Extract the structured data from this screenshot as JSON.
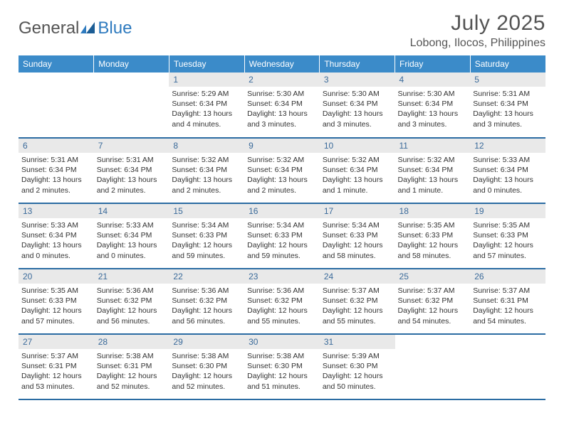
{
  "logo": {
    "text1": "General",
    "text2": "Blue"
  },
  "title": "July 2025",
  "location": "Lobong, Ilocos, Philippines",
  "colors": {
    "header_bg": "#3b8bc9",
    "header_text": "#ffffff",
    "row_border": "#2b6ca3",
    "daynum_bg": "#e9e9e9",
    "daynum_text": "#3a6a9a",
    "body_text": "#333333",
    "title_text": "#545454",
    "logo_gray": "#555555",
    "logo_blue": "#2f7bbf"
  },
  "weekdays": [
    "Sunday",
    "Monday",
    "Tuesday",
    "Wednesday",
    "Thursday",
    "Friday",
    "Saturday"
  ],
  "weeks": [
    [
      {
        "n": "",
        "sr": "",
        "ss": "",
        "dl": ""
      },
      {
        "n": "",
        "sr": "",
        "ss": "",
        "dl": ""
      },
      {
        "n": "1",
        "sr": "Sunrise: 5:29 AM",
        "ss": "Sunset: 6:34 PM",
        "dl": "Daylight: 13 hours and 4 minutes."
      },
      {
        "n": "2",
        "sr": "Sunrise: 5:30 AM",
        "ss": "Sunset: 6:34 PM",
        "dl": "Daylight: 13 hours and 3 minutes."
      },
      {
        "n": "3",
        "sr": "Sunrise: 5:30 AM",
        "ss": "Sunset: 6:34 PM",
        "dl": "Daylight: 13 hours and 3 minutes."
      },
      {
        "n": "4",
        "sr": "Sunrise: 5:30 AM",
        "ss": "Sunset: 6:34 PM",
        "dl": "Daylight: 13 hours and 3 minutes."
      },
      {
        "n": "5",
        "sr": "Sunrise: 5:31 AM",
        "ss": "Sunset: 6:34 PM",
        "dl": "Daylight: 13 hours and 3 minutes."
      }
    ],
    [
      {
        "n": "6",
        "sr": "Sunrise: 5:31 AM",
        "ss": "Sunset: 6:34 PM",
        "dl": "Daylight: 13 hours and 2 minutes."
      },
      {
        "n": "7",
        "sr": "Sunrise: 5:31 AM",
        "ss": "Sunset: 6:34 PM",
        "dl": "Daylight: 13 hours and 2 minutes."
      },
      {
        "n": "8",
        "sr": "Sunrise: 5:32 AM",
        "ss": "Sunset: 6:34 PM",
        "dl": "Daylight: 13 hours and 2 minutes."
      },
      {
        "n": "9",
        "sr": "Sunrise: 5:32 AM",
        "ss": "Sunset: 6:34 PM",
        "dl": "Daylight: 13 hours and 2 minutes."
      },
      {
        "n": "10",
        "sr": "Sunrise: 5:32 AM",
        "ss": "Sunset: 6:34 PM",
        "dl": "Daylight: 13 hours and 1 minute."
      },
      {
        "n": "11",
        "sr": "Sunrise: 5:32 AM",
        "ss": "Sunset: 6:34 PM",
        "dl": "Daylight: 13 hours and 1 minute."
      },
      {
        "n": "12",
        "sr": "Sunrise: 5:33 AM",
        "ss": "Sunset: 6:34 PM",
        "dl": "Daylight: 13 hours and 0 minutes."
      }
    ],
    [
      {
        "n": "13",
        "sr": "Sunrise: 5:33 AM",
        "ss": "Sunset: 6:34 PM",
        "dl": "Daylight: 13 hours and 0 minutes."
      },
      {
        "n": "14",
        "sr": "Sunrise: 5:33 AM",
        "ss": "Sunset: 6:34 PM",
        "dl": "Daylight: 13 hours and 0 minutes."
      },
      {
        "n": "15",
        "sr": "Sunrise: 5:34 AM",
        "ss": "Sunset: 6:33 PM",
        "dl": "Daylight: 12 hours and 59 minutes."
      },
      {
        "n": "16",
        "sr": "Sunrise: 5:34 AM",
        "ss": "Sunset: 6:33 PM",
        "dl": "Daylight: 12 hours and 59 minutes."
      },
      {
        "n": "17",
        "sr": "Sunrise: 5:34 AM",
        "ss": "Sunset: 6:33 PM",
        "dl": "Daylight: 12 hours and 58 minutes."
      },
      {
        "n": "18",
        "sr": "Sunrise: 5:35 AM",
        "ss": "Sunset: 6:33 PM",
        "dl": "Daylight: 12 hours and 58 minutes."
      },
      {
        "n": "19",
        "sr": "Sunrise: 5:35 AM",
        "ss": "Sunset: 6:33 PM",
        "dl": "Daylight: 12 hours and 57 minutes."
      }
    ],
    [
      {
        "n": "20",
        "sr": "Sunrise: 5:35 AM",
        "ss": "Sunset: 6:33 PM",
        "dl": "Daylight: 12 hours and 57 minutes."
      },
      {
        "n": "21",
        "sr": "Sunrise: 5:36 AM",
        "ss": "Sunset: 6:32 PM",
        "dl": "Daylight: 12 hours and 56 minutes."
      },
      {
        "n": "22",
        "sr": "Sunrise: 5:36 AM",
        "ss": "Sunset: 6:32 PM",
        "dl": "Daylight: 12 hours and 56 minutes."
      },
      {
        "n": "23",
        "sr": "Sunrise: 5:36 AM",
        "ss": "Sunset: 6:32 PM",
        "dl": "Daylight: 12 hours and 55 minutes."
      },
      {
        "n": "24",
        "sr": "Sunrise: 5:37 AM",
        "ss": "Sunset: 6:32 PM",
        "dl": "Daylight: 12 hours and 55 minutes."
      },
      {
        "n": "25",
        "sr": "Sunrise: 5:37 AM",
        "ss": "Sunset: 6:32 PM",
        "dl": "Daylight: 12 hours and 54 minutes."
      },
      {
        "n": "26",
        "sr": "Sunrise: 5:37 AM",
        "ss": "Sunset: 6:31 PM",
        "dl": "Daylight: 12 hours and 54 minutes."
      }
    ],
    [
      {
        "n": "27",
        "sr": "Sunrise: 5:37 AM",
        "ss": "Sunset: 6:31 PM",
        "dl": "Daylight: 12 hours and 53 minutes."
      },
      {
        "n": "28",
        "sr": "Sunrise: 5:38 AM",
        "ss": "Sunset: 6:31 PM",
        "dl": "Daylight: 12 hours and 52 minutes."
      },
      {
        "n": "29",
        "sr": "Sunrise: 5:38 AM",
        "ss": "Sunset: 6:30 PM",
        "dl": "Daylight: 12 hours and 52 minutes."
      },
      {
        "n": "30",
        "sr": "Sunrise: 5:38 AM",
        "ss": "Sunset: 6:30 PM",
        "dl": "Daylight: 12 hours and 51 minutes."
      },
      {
        "n": "31",
        "sr": "Sunrise: 5:39 AM",
        "ss": "Sunset: 6:30 PM",
        "dl": "Daylight: 12 hours and 50 minutes."
      },
      {
        "n": "",
        "sr": "",
        "ss": "",
        "dl": ""
      },
      {
        "n": "",
        "sr": "",
        "ss": "",
        "dl": ""
      }
    ]
  ]
}
